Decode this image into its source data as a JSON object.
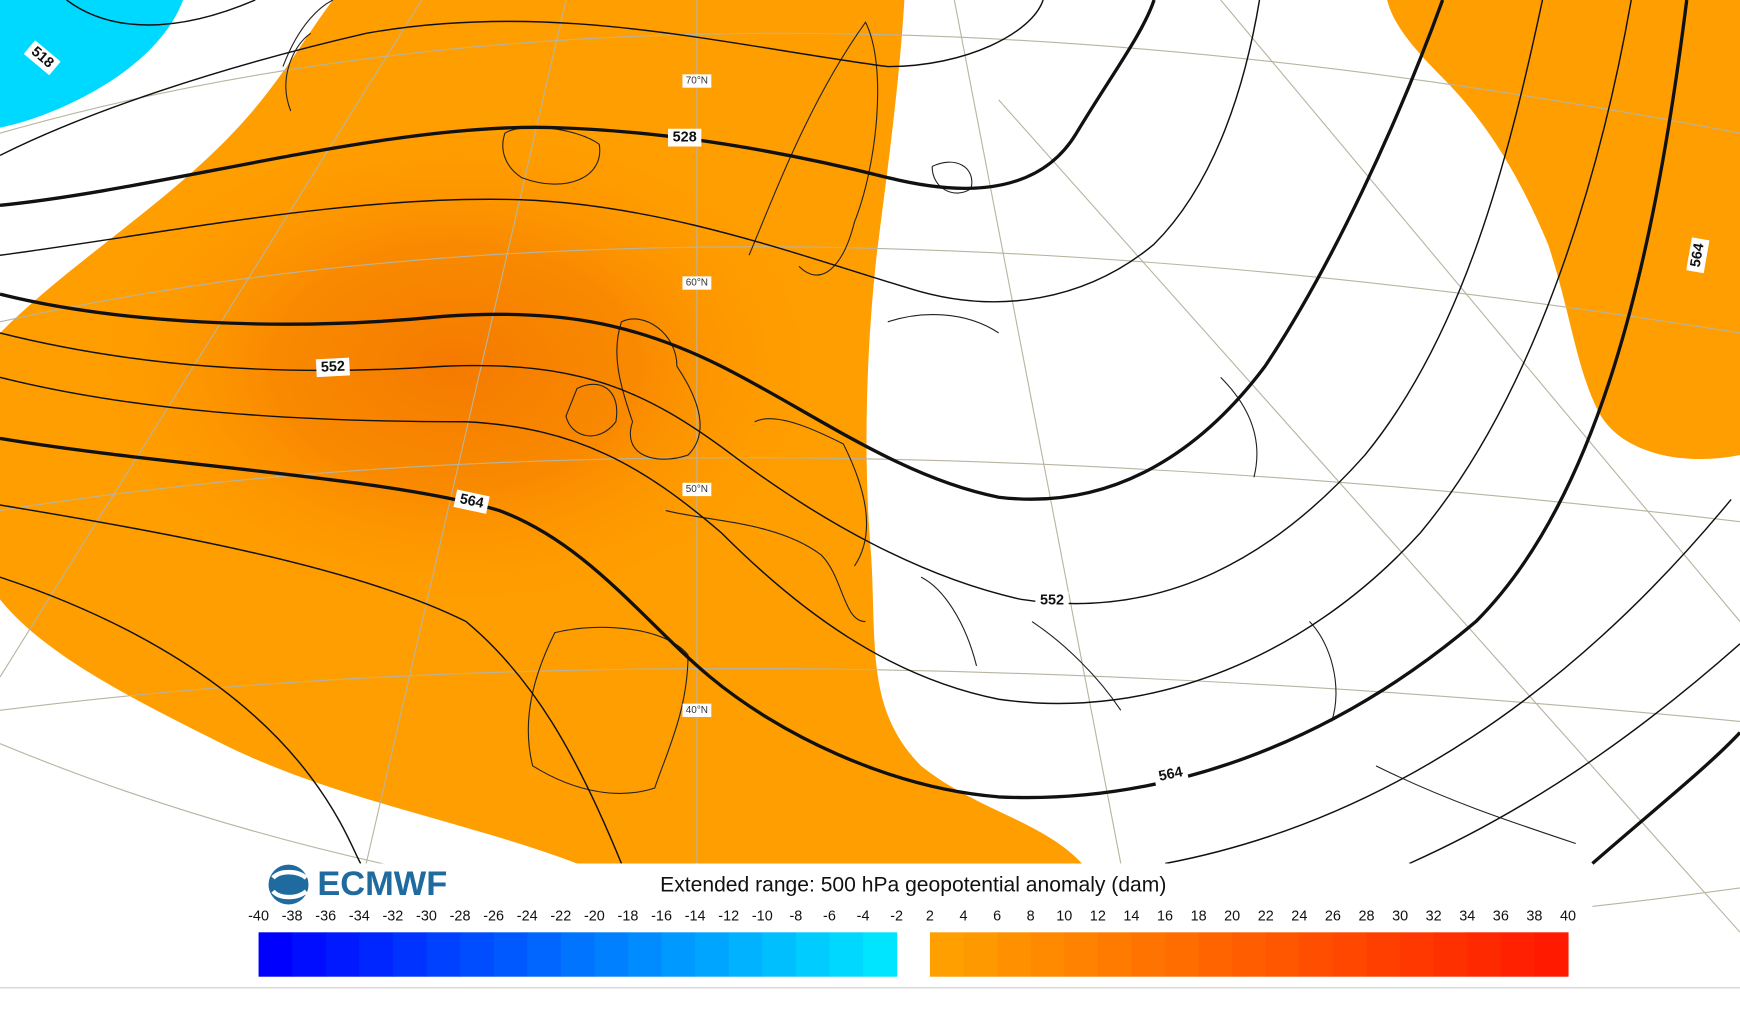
{
  "header": {
    "logo": "ECMWF",
    "title": "Extended range: 500 hPa geopotential anomaly (dam)"
  },
  "map": {
    "latitude_labels": [
      "70°N",
      "60°N",
      "50°N",
      "40°N"
    ],
    "contour_labels": [
      518,
      528,
      552,
      564,
      552,
      564,
      564
    ]
  },
  "colorbar": {
    "ticks": [
      -40,
      -38,
      -36,
      -34,
      -32,
      -30,
      -28,
      -26,
      -24,
      -22,
      -20,
      -18,
      -16,
      -14,
      -12,
      -10,
      -8,
      -6,
      -4,
      -2,
      2,
      4,
      6,
      8,
      10,
      12,
      14,
      16,
      18,
      20,
      22,
      24,
      26,
      28,
      30,
      32,
      34,
      36,
      38,
      40
    ]
  }
}
